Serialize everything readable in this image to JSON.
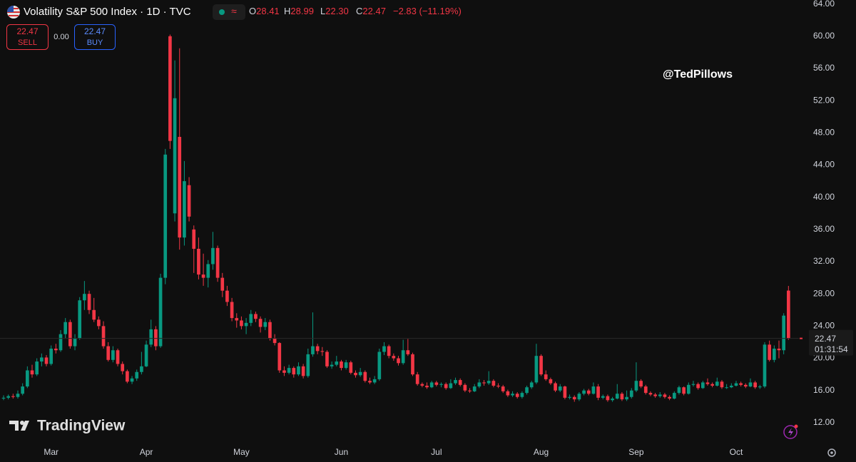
{
  "header": {
    "title": "Volatility S&P 500 Index · 1D · TVC",
    "o_label": "O",
    "open": "28.41",
    "h_label": "H",
    "high": "28.99",
    "l_label": "L",
    "low": "22.30",
    "c_label": "C",
    "close": "22.47",
    "change": "−2.83 (−11.19%)"
  },
  "trade": {
    "sell_price": "22.47",
    "sell_label": "SELL",
    "spread": "0.00",
    "buy_price": "22.47",
    "buy_label": "BUY"
  },
  "watermark": "@TedPillows",
  "branding": "TradingView",
  "countdown": "01:31:54",
  "chart_data": {
    "type": "candlestick",
    "up_color": "#089981",
    "down_color": "#f23645",
    "grid": false,
    "last_price": 22.47,
    "ylim": [
      9.6,
      64.5
    ],
    "yticks": [
      {
        "value": 12,
        "label": "12.00"
      },
      {
        "value": 16,
        "label": "16.00"
      },
      {
        "value": 20,
        "label": "20.00"
      },
      {
        "value": 24,
        "label": "24.00"
      },
      {
        "value": 28,
        "label": "28.00"
      },
      {
        "value": 32,
        "label": "32.00"
      },
      {
        "value": 36,
        "label": "36.00"
      },
      {
        "value": 40,
        "label": "40.00"
      },
      {
        "value": 44,
        "label": "44.00"
      },
      {
        "value": 48,
        "label": "48.00"
      },
      {
        "value": 52,
        "label": "52.00"
      },
      {
        "value": 56,
        "label": "56.00"
      },
      {
        "value": 60,
        "label": "60.00"
      },
      {
        "value": 64,
        "label": "64.00"
      }
    ],
    "xlim": [
      -0.75,
      167.2
    ],
    "xticks": [
      {
        "value": 10,
        "label": "Mar"
      },
      {
        "value": 30,
        "label": "Apr"
      },
      {
        "value": 50,
        "label": "May"
      },
      {
        "value": 71,
        "label": "Jun"
      },
      {
        "value": 91,
        "label": "Jul"
      },
      {
        "value": 113,
        "label": "Aug"
      },
      {
        "value": 133,
        "label": "Sep"
      },
      {
        "value": 154,
        "label": "Oct"
      }
    ],
    "ohlc": [
      [
        15.0,
        15.4,
        14.8,
        15.1
      ],
      [
        15.1,
        15.5,
        14.9,
        15.3
      ],
      [
        15.3,
        15.6,
        15.0,
        15.2
      ],
      [
        15.2,
        16.0,
        15.0,
        15.6
      ],
      [
        15.6,
        16.9,
        15.4,
        16.5
      ],
      [
        16.5,
        19.0,
        16.3,
        18.5
      ],
      [
        18.5,
        19.2,
        17.6,
        18.0
      ],
      [
        18.0,
        20.0,
        17.8,
        19.6
      ],
      [
        19.6,
        20.6,
        19.0,
        20.1
      ],
      [
        20.1,
        20.4,
        19.0,
        19.3
      ],
      [
        19.3,
        21.6,
        19.1,
        21.2
      ],
      [
        21.2,
        21.8,
        20.6,
        21.0
      ],
      [
        21.0,
        23.5,
        20.8,
        23.0
      ],
      [
        23.0,
        25.0,
        22.5,
        24.5
      ],
      [
        24.5,
        24.8,
        21.2,
        21.5
      ],
      [
        21.5,
        23.0,
        21.0,
        22.5
      ],
      [
        22.5,
        27.6,
        22.3,
        27.2
      ],
      [
        27.2,
        29.6,
        26.0,
        28.0
      ],
      [
        28.0,
        28.4,
        25.5,
        26.0
      ],
      [
        26.0,
        27.5,
        24.5,
        24.8
      ],
      [
        24.8,
        25.2,
        23.6,
        24.0
      ],
      [
        24.0,
        24.6,
        21.2,
        21.5
      ],
      [
        21.5,
        22.0,
        19.6,
        19.8
      ],
      [
        19.8,
        21.5,
        19.5,
        21.0
      ],
      [
        21.0,
        21.2,
        19.0,
        19.3
      ],
      [
        19.3,
        19.6,
        18.0,
        18.4
      ],
      [
        18.4,
        18.6,
        16.9,
        17.1
      ],
      [
        17.1,
        17.8,
        16.8,
        17.5
      ],
      [
        17.5,
        18.6,
        17.2,
        18.3
      ],
      [
        18.3,
        20.8,
        18.0,
        19.0
      ],
      [
        19.0,
        22.2,
        18.9,
        21.7
      ],
      [
        21.7,
        24.8,
        21.4,
        23.6
      ],
      [
        23.6,
        24.0,
        21.0,
        21.5
      ],
      [
        21.5,
        30.5,
        21.3,
        30.0
      ],
      [
        30.0,
        46.0,
        29.2,
        45.3
      ],
      [
        60.0,
        60.2,
        46.0,
        47.0
      ],
      [
        38.0,
        57.0,
        37.0,
        52.3
      ],
      [
        47.5,
        58.5,
        33.5,
        35.0
      ],
      [
        35.0,
        44.5,
        34.0,
        42.0
      ],
      [
        41.5,
        42.5,
        37.0,
        37.6
      ],
      [
        36.0,
        36.5,
        30.6,
        33.6
      ],
      [
        33.6,
        35.0,
        29.8,
        30.4
      ],
      [
        30.4,
        33.0,
        29.0,
        30.0
      ],
      [
        30.0,
        32.2,
        28.8,
        31.7
      ],
      [
        31.7,
        35.7,
        31.0,
        33.7
      ],
      [
        33.7,
        34.0,
        29.5,
        30.0
      ],
      [
        30.0,
        30.6,
        27.6,
        28.4
      ],
      [
        28.4,
        29.0,
        26.5,
        27.0
      ],
      [
        27.0,
        27.5,
        24.6,
        25.0
      ],
      [
        25.0,
        25.6,
        23.8,
        24.7
      ],
      [
        24.7,
        25.2,
        23.6,
        24.0
      ],
      [
        24.0,
        25.0,
        23.0,
        24.4
      ],
      [
        24.4,
        26.0,
        24.0,
        25.5
      ],
      [
        25.5,
        25.8,
        24.5,
        24.9
      ],
      [
        24.9,
        25.2,
        23.2,
        23.9
      ],
      [
        23.9,
        25.0,
        23.5,
        24.5
      ],
      [
        24.5,
        24.8,
        22.2,
        22.5
      ],
      [
        22.5,
        23.0,
        21.6,
        21.9
      ],
      [
        21.9,
        22.0,
        18.2,
        18.5
      ],
      [
        18.5,
        19.0,
        17.8,
        18.2
      ],
      [
        18.2,
        19.2,
        18.0,
        18.8
      ],
      [
        18.8,
        19.0,
        17.6,
        18.0
      ],
      [
        18.0,
        19.5,
        17.8,
        19.0
      ],
      [
        19.0,
        19.3,
        17.5,
        17.8
      ],
      [
        17.8,
        21.2,
        17.6,
        20.5
      ],
      [
        20.5,
        25.7,
        20.2,
        21.5
      ],
      [
        21.5,
        21.8,
        20.5,
        20.9
      ],
      [
        20.9,
        21.4,
        20.3,
        20.8
      ],
      [
        20.8,
        21.0,
        18.8,
        19.0
      ],
      [
        19.0,
        19.6,
        18.7,
        19.2
      ],
      [
        19.2,
        20.3,
        19.0,
        19.6
      ],
      [
        19.6,
        19.8,
        18.5,
        18.8
      ],
      [
        18.8,
        19.8,
        18.6,
        19.5
      ],
      [
        19.5,
        19.7,
        18.0,
        18.2
      ],
      [
        18.2,
        18.5,
        17.6,
        17.9
      ],
      [
        17.9,
        18.8,
        17.7,
        18.3
      ],
      [
        18.3,
        18.5,
        17.0,
        17.2
      ],
      [
        17.2,
        17.6,
        16.8,
        17.0
      ],
      [
        17.0,
        17.8,
        16.8,
        17.4
      ],
      [
        17.4,
        21.2,
        17.2,
        20.8
      ],
      [
        20.8,
        22.0,
        20.4,
        21.5
      ],
      [
        21.5,
        21.7,
        20.0,
        20.3
      ],
      [
        20.3,
        20.6,
        19.7,
        20.0
      ],
      [
        20.0,
        20.3,
        19.1,
        19.4
      ],
      [
        19.4,
        22.3,
        19.2,
        21.0
      ],
      [
        21.0,
        22.4,
        20.3,
        20.5
      ],
      [
        20.5,
        20.7,
        17.8,
        18.0
      ],
      [
        18.0,
        18.3,
        16.6,
        16.8
      ],
      [
        16.8,
        17.0,
        16.4,
        16.6
      ],
      [
        16.6,
        17.0,
        16.2,
        16.4
      ],
      [
        16.4,
        17.2,
        16.3,
        17.0
      ],
      [
        17.0,
        17.2,
        16.5,
        16.7
      ],
      [
        16.7,
        17.0,
        16.4,
        16.8
      ],
      [
        16.8,
        17.0,
        16.1,
        16.3
      ],
      [
        16.3,
        17.4,
        16.2,
        16.9
      ],
      [
        16.9,
        17.6,
        16.7,
        17.3
      ],
      [
        17.3,
        17.5,
        16.5,
        16.7
      ],
      [
        16.7,
        16.9,
        15.8,
        16.0
      ],
      [
        16.0,
        16.3,
        15.7,
        15.9
      ],
      [
        15.9,
        16.8,
        15.8,
        16.5
      ],
      [
        16.5,
        17.4,
        16.3,
        17.0
      ],
      [
        17.0,
        17.3,
        16.6,
        16.9
      ],
      [
        16.9,
        18.4,
        16.7,
        17.2
      ],
      [
        17.2,
        17.4,
        16.4,
        16.6
      ],
      [
        16.6,
        16.9,
        16.3,
        16.5
      ],
      [
        16.5,
        16.7,
        15.7,
        15.9
      ],
      [
        15.9,
        16.1,
        15.2,
        15.4
      ],
      [
        15.4,
        15.9,
        15.2,
        15.6
      ],
      [
        15.6,
        15.8,
        15.0,
        15.2
      ],
      [
        15.2,
        15.9,
        15.0,
        15.7
      ],
      [
        15.7,
        16.6,
        15.5,
        16.4
      ],
      [
        16.4,
        17.2,
        16.2,
        17.0
      ],
      [
        17.0,
        21.8,
        16.8,
        20.3
      ],
      [
        20.3,
        20.5,
        17.8,
        18.0
      ],
      [
        18.0,
        18.5,
        17.2,
        17.4
      ],
      [
        17.4,
        17.6,
        16.7,
        16.9
      ],
      [
        16.9,
        17.1,
        15.8,
        16.0
      ],
      [
        16.0,
        16.8,
        15.8,
        16.5
      ],
      [
        16.5,
        16.6,
        14.9,
        15.1
      ],
      [
        15.1,
        15.5,
        14.9,
        15.2
      ],
      [
        15.2,
        15.4,
        14.6,
        14.9
      ],
      [
        14.9,
        15.8,
        14.7,
        15.6
      ],
      [
        15.6,
        16.2,
        15.4,
        16.0
      ],
      [
        16.0,
        16.2,
        15.4,
        15.6
      ],
      [
        15.6,
        17.0,
        15.5,
        16.5
      ],
      [
        16.5,
        16.8,
        14.8,
        15.1
      ],
      [
        15.1,
        15.5,
        14.9,
        15.3
      ],
      [
        15.3,
        15.5,
        14.6,
        14.8
      ],
      [
        14.8,
        15.2,
        14.6,
        15.0
      ],
      [
        15.0,
        16.8,
        14.9,
        15.6
      ],
      [
        15.6,
        15.8,
        14.7,
        14.9
      ],
      [
        14.9,
        16.0,
        14.7,
        15.2
      ],
      [
        15.2,
        16.3,
        15.0,
        16.0
      ],
      [
        16.0,
        19.5,
        15.8,
        17.2
      ],
      [
        17.2,
        17.4,
        16.3,
        16.5
      ],
      [
        16.5,
        16.7,
        15.5,
        15.7
      ],
      [
        15.7,
        15.9,
        15.3,
        15.5
      ],
      [
        15.5,
        15.7,
        15.1,
        15.3
      ],
      [
        15.3,
        15.8,
        15.1,
        15.5
      ],
      [
        15.5,
        15.7,
        15.0,
        15.2
      ],
      [
        15.2,
        15.4,
        14.8,
        15.0
      ],
      [
        15.0,
        15.9,
        14.9,
        15.7
      ],
      [
        15.7,
        16.6,
        15.5,
        16.4
      ],
      [
        16.4,
        16.5,
        15.4,
        15.6
      ],
      [
        15.6,
        17.0,
        15.5,
        16.7
      ],
      [
        16.7,
        17.2,
        16.5,
        16.8
      ],
      [
        16.8,
        17.0,
        16.1,
        16.3
      ],
      [
        16.3,
        17.2,
        16.2,
        17.0
      ],
      [
        17.0,
        17.5,
        16.6,
        16.8
      ],
      [
        16.8,
        17.0,
        16.4,
        16.6
      ],
      [
        16.6,
        17.6,
        16.5,
        17.1
      ],
      [
        17.1,
        17.3,
        16.2,
        16.4
      ],
      [
        16.4,
        16.8,
        16.2,
        16.4
      ],
      [
        16.4,
        16.9,
        16.3,
        16.6
      ],
      [
        16.6,
        17.2,
        16.5,
        16.9
      ],
      [
        16.9,
        17.1,
        16.5,
        16.7
      ],
      [
        16.7,
        16.9,
        16.3,
        16.5
      ],
      [
        16.5,
        17.5,
        16.4,
        17.0
      ],
      [
        17.0,
        17.2,
        16.2,
        16.4
      ],
      [
        16.4,
        16.7,
        16.2,
        16.5
      ],
      [
        16.5,
        22.0,
        16.3,
        21.7
      ],
      [
        21.7,
        22.2,
        19.6,
        19.8
      ],
      [
        19.8,
        21.6,
        19.5,
        21.2
      ],
      [
        21.2,
        22.2,
        20.0,
        21.0
      ],
      [
        21.0,
        25.6,
        20.5,
        25.3
      ],
      [
        28.41,
        28.99,
        22.3,
        22.47
      ]
    ]
  }
}
